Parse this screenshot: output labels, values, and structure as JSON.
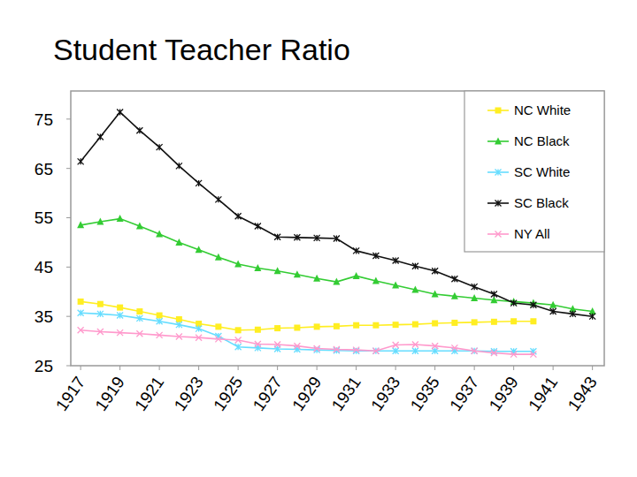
{
  "chart_data": {
    "type": "line",
    "title": "Student Teacher Ratio",
    "x": [
      1917,
      1918,
      1919,
      1920,
      1921,
      1922,
      1923,
      1924,
      1925,
      1926,
      1927,
      1928,
      1929,
      1930,
      1931,
      1932,
      1933,
      1934,
      1935,
      1936,
      1937,
      1938,
      1939,
      1940,
      1941,
      1942,
      1943
    ],
    "xlim": [
      1916.5,
      1943.6
    ],
    "xticks": [
      1917,
      1919,
      1921,
      1923,
      1925,
      1927,
      1929,
      1931,
      1933,
      1935,
      1937,
      1939,
      1941,
      1943
    ],
    "ylim": [
      25,
      80.7
    ],
    "yticks": [
      25,
      35,
      45,
      55,
      65,
      75
    ],
    "grid": false,
    "legend": "upper right",
    "series": [
      {
        "name": "NC White",
        "color": "#ffee22",
        "marker": "square",
        "values": [
          38.0,
          37.5,
          36.8,
          36.0,
          35.2,
          34.4,
          33.5,
          32.9,
          32.2,
          32.3,
          32.6,
          32.7,
          32.9,
          33.0,
          33.2,
          33.2,
          33.3,
          33.4,
          33.6,
          33.7,
          33.8,
          33.9,
          34.0,
          34.0,
          null,
          null,
          null
        ]
      },
      {
        "name": "NC Black",
        "color": "#33cc33",
        "marker": "triangle",
        "values": [
          53.5,
          54.2,
          54.8,
          53.3,
          51.7,
          50.0,
          48.5,
          47.0,
          45.6,
          44.8,
          44.2,
          43.5,
          42.7,
          42.0,
          43.2,
          42.2,
          41.3,
          40.4,
          39.5,
          39.1,
          38.7,
          38.3,
          38.0,
          37.7,
          37.3,
          36.5,
          36.0
        ]
      },
      {
        "name": "SC White",
        "color": "#66ddff",
        "marker": "asterisk",
        "values": [
          35.7,
          35.5,
          35.2,
          34.6,
          34.0,
          33.3,
          32.5,
          31.0,
          28.8,
          28.6,
          28.4,
          28.3,
          28.2,
          28.1,
          28.0,
          28.0,
          28.0,
          28.0,
          28.0,
          28.0,
          28.0,
          27.9,
          27.9,
          27.9,
          null,
          null,
          null
        ]
      },
      {
        "name": "SC Black",
        "color": "#111111",
        "marker": "asterisk",
        "values": [
          66.4,
          71.4,
          76.4,
          72.7,
          69.3,
          65.5,
          62.0,
          58.7,
          55.3,
          53.3,
          51.1,
          51.0,
          50.9,
          50.8,
          48.3,
          47.3,
          46.3,
          45.2,
          44.2,
          42.6,
          41.0,
          39.5,
          37.7,
          37.3,
          36.0,
          35.5,
          35.0
        ]
      },
      {
        "name": "NY All",
        "color": "#ff99cc",
        "marker": "x",
        "values": [
          32.2,
          31.9,
          31.7,
          31.5,
          31.2,
          30.9,
          30.7,
          30.4,
          30.2,
          29.4,
          29.3,
          29.0,
          28.5,
          28.3,
          28.2,
          28.0,
          29.2,
          29.3,
          29.0,
          28.6,
          28.0,
          27.6,
          27.3,
          27.3,
          null,
          null,
          null
        ]
      }
    ]
  }
}
